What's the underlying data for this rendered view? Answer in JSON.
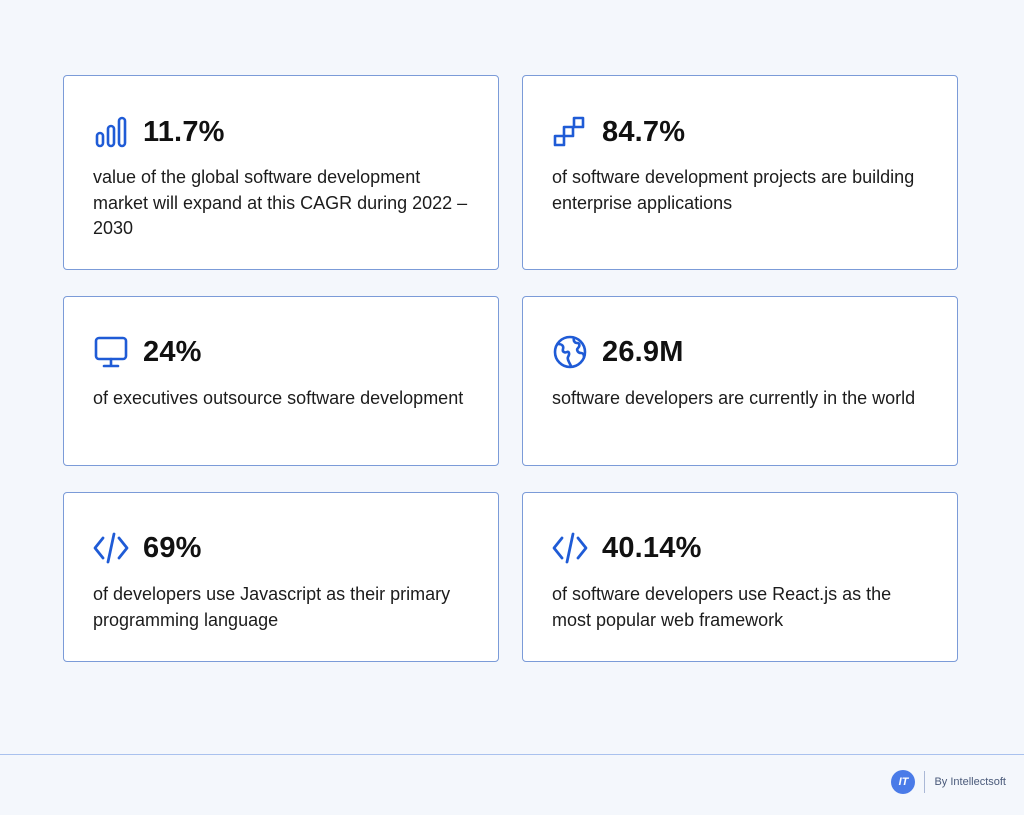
{
  "accent": "#1f5bd6",
  "cards": [
    {
      "icon": "bar-chart-icon",
      "stat": "11.7%",
      "description": "value of the global software development market will expand at this CAGR during 2022 – 2030"
    },
    {
      "icon": "steps-icon",
      "stat": "84.7%",
      "description": "of software development projects are building enterprise applications"
    },
    {
      "icon": "monitor-icon",
      "stat": "24%",
      "description": "of executives outsource software development"
    },
    {
      "icon": "globe-icon",
      "stat": "26.9M",
      "description": "software developers are currently in the world"
    },
    {
      "icon": "code-icon",
      "stat": "69%",
      "description": "of developers use Javascript as their primary programming language"
    },
    {
      "icon": "code-icon",
      "stat": "40.14%",
      "description": "of software developers use React.js as the most popular web framework"
    }
  ],
  "footer": {
    "logo_text": "IT",
    "brand_text": "By Intellectsoft"
  }
}
